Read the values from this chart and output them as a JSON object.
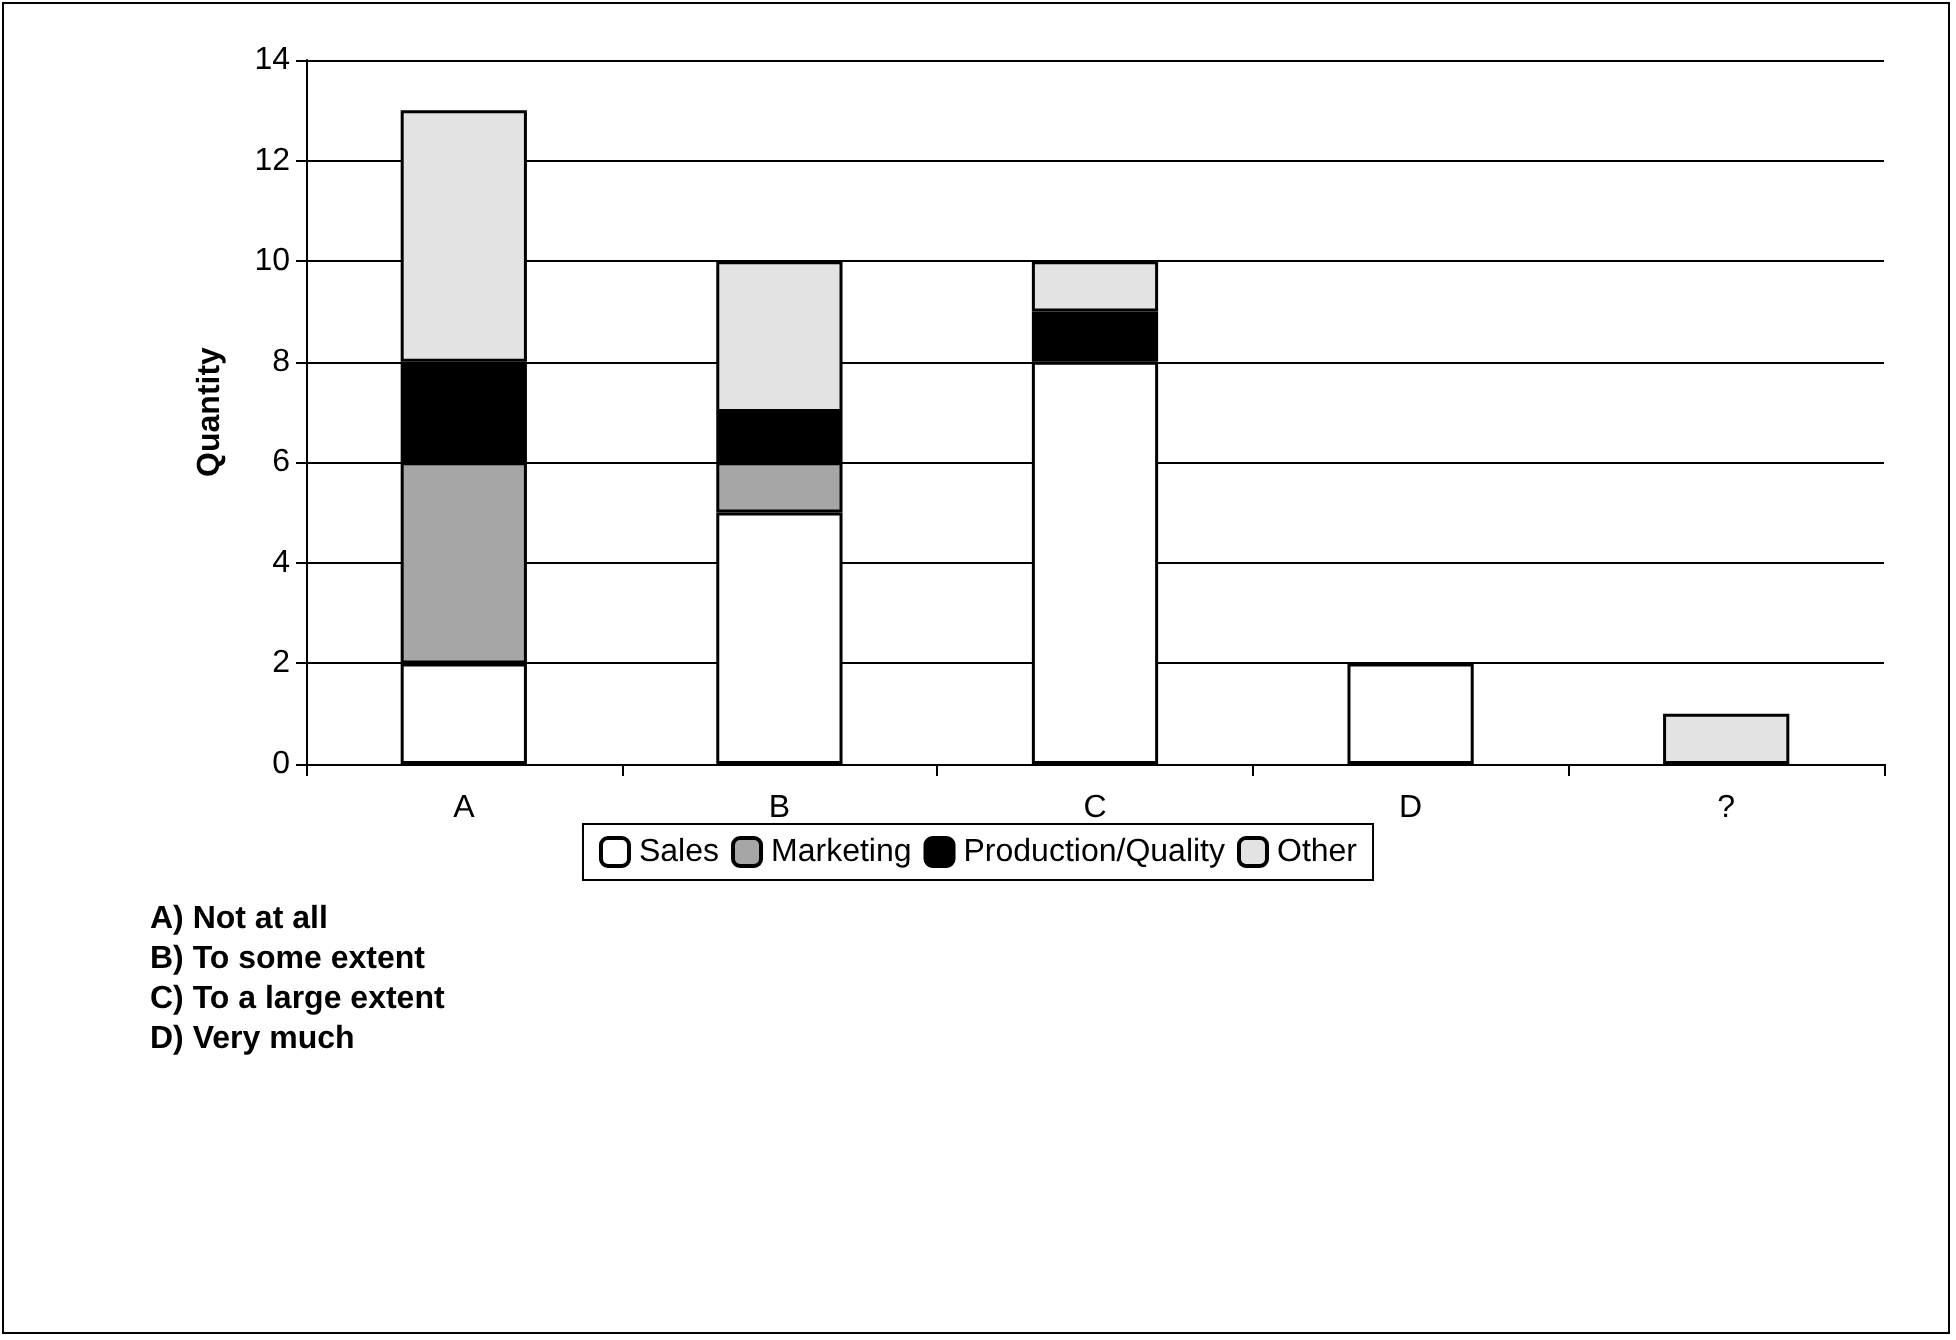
{
  "chart_data": {
    "type": "bar",
    "stacked": true,
    "ylabel": "Quantity",
    "categories": [
      "A",
      "B",
      "C",
      "D",
      "?"
    ],
    "series": [
      {
        "name": "Sales",
        "color": "#ffffff",
        "values": [
          2,
          5,
          8,
          2,
          null
        ]
      },
      {
        "name": "Marketing",
        "color": "#a6a6a6",
        "values": [
          4,
          1,
          null,
          null,
          null
        ]
      },
      {
        "name": "Production/Quality",
        "color": "#000000",
        "values": [
          2,
          1,
          1,
          null,
          null
        ]
      },
      {
        "name": "Other",
        "color": "#e3e3e3",
        "values": [
          5,
          3,
          1,
          null,
          1
        ]
      }
    ],
    "ylim": [
      0,
      14
    ],
    "yticks": [
      0,
      2,
      4,
      6,
      8,
      10,
      12,
      14
    ],
    "grid": "y",
    "legend": "bottom",
    "annotations": [
      "A)  Not at all",
      "B)  To some extent",
      "C)  To a large extent",
      "D)  Very much"
    ]
  }
}
